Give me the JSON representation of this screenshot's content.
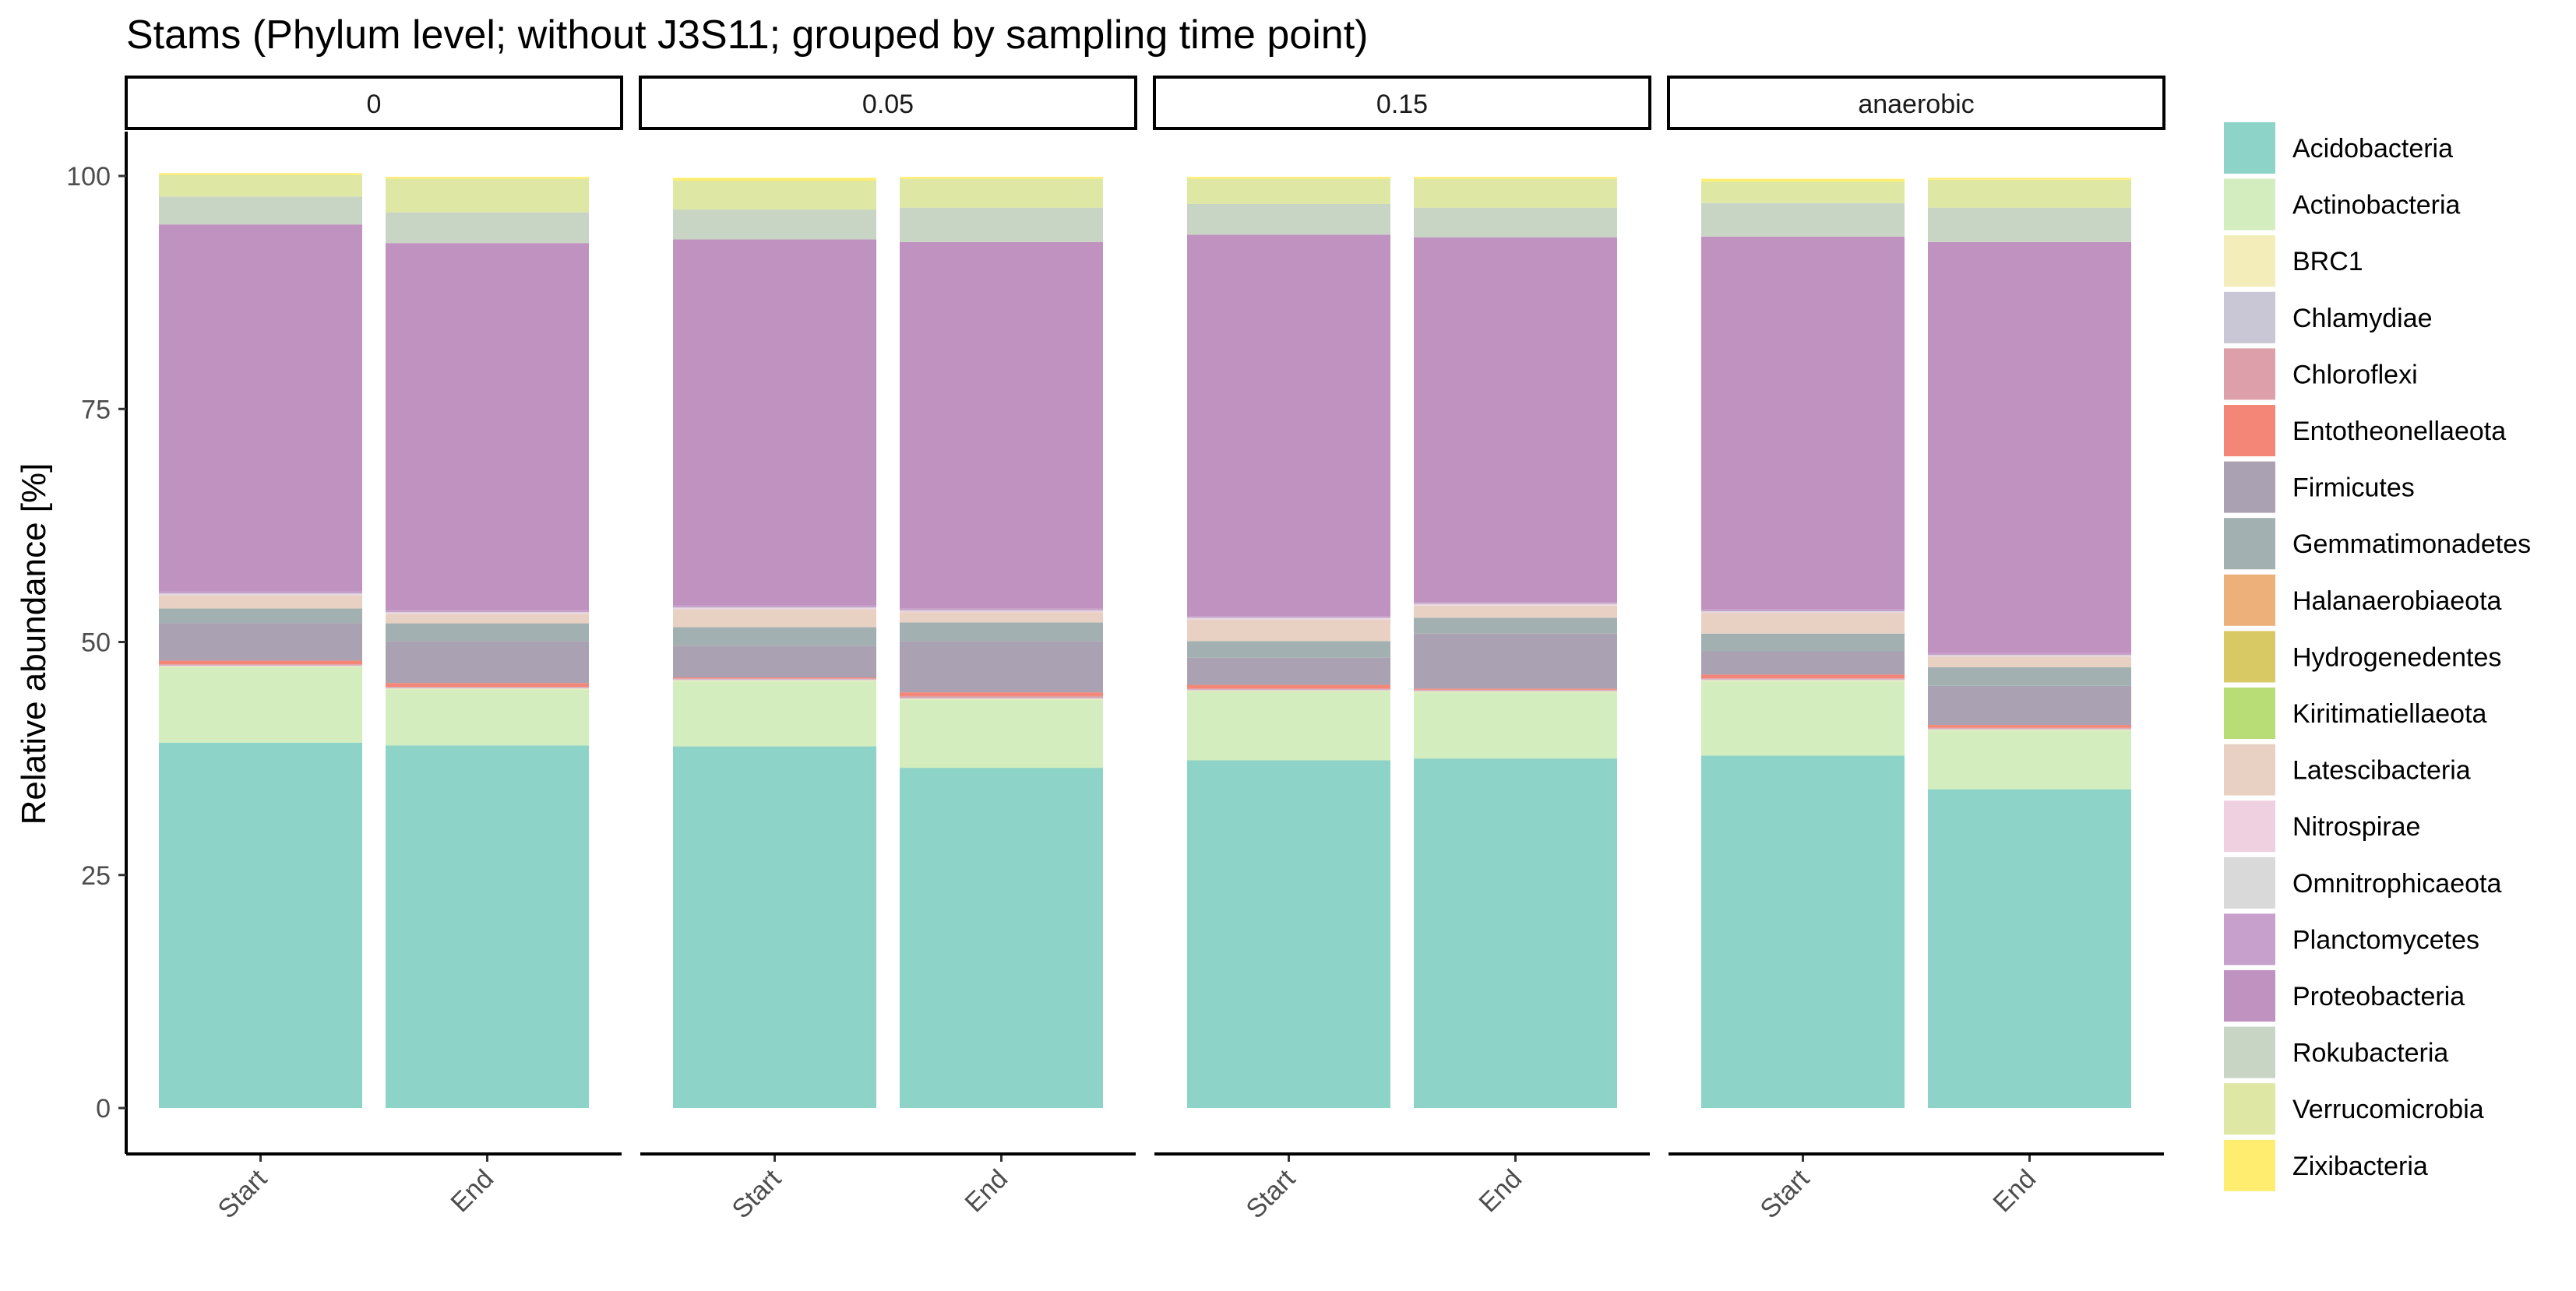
{
  "chart_data": {
    "type": "bar",
    "stacked": true,
    "title": "Stams (Phylum level; without J3S11; grouped by sampling time point)",
    "ylabel": "Relative abundance [%]",
    "xlabel": "",
    "ylim": [
      0,
      100
    ],
    "yticks": [
      0,
      25,
      50,
      75,
      100
    ],
    "grid": false,
    "legend_position": "right",
    "facets": [
      "0",
      "0.05",
      "0.15",
      "anaerobic"
    ],
    "categories": [
      "Start",
      "End"
    ],
    "series": [
      {
        "name": "Acidobacteria",
        "color": "#8DD3C7",
        "values": [
          [
            39.2,
            38.9
          ],
          [
            38.8,
            36.5
          ],
          [
            37.3,
            37.5
          ],
          [
            37.8,
            34.2
          ]
        ]
      },
      {
        "name": "Actinobacteria",
        "color": "#D3EDBF",
        "values": [
          [
            8.1,
            6.0
          ],
          [
            7.0,
            7.3
          ],
          [
            7.4,
            7.1
          ],
          [
            8.0,
            6.3
          ]
        ]
      },
      {
        "name": "BRC1",
        "color": "#F2EDB9",
        "values": [
          [
            0.1,
            0.1
          ],
          [
            0.1,
            0.1
          ],
          [
            0.1,
            0.1
          ],
          [
            0.1,
            0.1
          ]
        ]
      },
      {
        "name": "Chlamydiae",
        "color": "#C9C6D5",
        "values": [
          [
            0.1,
            0.1
          ],
          [
            0.1,
            0.1
          ],
          [
            0.1,
            0.1
          ],
          [
            0.1,
            0.1
          ]
        ]
      },
      {
        "name": "Chloroflexi",
        "color": "#DDA0AA",
        "values": [
          [
            0.1,
            0.1
          ],
          [
            0.1,
            0.2
          ],
          [
            0.1,
            0.1
          ],
          [
            0.1,
            0.1
          ]
        ]
      },
      {
        "name": "Entotheonellaeota",
        "color": "#F48677",
        "values": [
          [
            0.4,
            0.4
          ],
          [
            0.1,
            0.4
          ],
          [
            0.4,
            0.1
          ],
          [
            0.4,
            0.3
          ]
        ]
      },
      {
        "name": "Firmicutes",
        "color": "#AAA1B3",
        "values": [
          [
            4.0,
            4.5
          ],
          [
            3.4,
            5.5
          ],
          [
            2.9,
            5.9
          ],
          [
            2.5,
            4.2
          ]
        ]
      },
      {
        "name": "Gemmatimonadetes",
        "color": "#A2B0B1",
        "values": [
          [
            1.6,
            1.9
          ],
          [
            2.0,
            2.0
          ],
          [
            1.8,
            1.7
          ],
          [
            1.9,
            2.0
          ]
        ]
      },
      {
        "name": "Halanaerobiaeota",
        "color": "#EDB07A",
        "values": [
          [
            0.0,
            0.0
          ],
          [
            0.0,
            0.0
          ],
          [
            0.0,
            0.0
          ],
          [
            0.0,
            0.0
          ]
        ]
      },
      {
        "name": "Hydrogenedentes",
        "color": "#D8C965",
        "values": [
          [
            0.0,
            0.0
          ],
          [
            0.0,
            0.0
          ],
          [
            0.0,
            0.0
          ],
          [
            0.0,
            0.0
          ]
        ]
      },
      {
        "name": "Kiritimatiellaeota",
        "color": "#B9DD76",
        "values": [
          [
            0.0,
            0.0
          ],
          [
            0.0,
            0.0
          ],
          [
            0.0,
            0.0
          ],
          [
            0.0,
            0.0
          ]
        ]
      },
      {
        "name": "Latescibacteria",
        "color": "#E8D1C2",
        "values": [
          [
            1.4,
            1.0
          ],
          [
            1.9,
            1.1
          ],
          [
            2.3,
            1.3
          ],
          [
            2.2,
            1.1
          ]
        ]
      },
      {
        "name": "Nitrospirae",
        "color": "#EFD0E1",
        "values": [
          [
            0.1,
            0.1
          ],
          [
            0.1,
            0.1
          ],
          [
            0.1,
            0.1
          ],
          [
            0.1,
            0.1
          ]
        ]
      },
      {
        "name": "Omnitrophicaeota",
        "color": "#D9D9D9",
        "values": [
          [
            0.1,
            0.1
          ],
          [
            0.1,
            0.1
          ],
          [
            0.1,
            0.1
          ],
          [
            0.1,
            0.1
          ]
        ]
      },
      {
        "name": "Planctomycetes",
        "color": "#C7A0CB",
        "values": [
          [
            0.2,
            0.2
          ],
          [
            0.2,
            0.2
          ],
          [
            0.2,
            0.2
          ],
          [
            0.2,
            0.2
          ]
        ]
      },
      {
        "name": "Proteobacteria",
        "color": "#BF92C0",
        "values": [
          [
            39.4,
            39.4
          ],
          [
            39.3,
            39.3
          ],
          [
            40.9,
            39.1
          ],
          [
            40.0,
            44.1
          ]
        ]
      },
      {
        "name": "Rokubacteria",
        "color": "#C9D5C4",
        "values": [
          [
            3.0,
            3.3
          ],
          [
            3.2,
            3.7
          ],
          [
            3.3,
            3.2
          ],
          [
            3.6,
            3.7
          ]
        ]
      },
      {
        "name": "Verrucomicrobia",
        "color": "#DEE7A3",
        "values": [
          [
            2.3,
            3.6
          ],
          [
            3.1,
            3.1
          ],
          [
            2.7,
            3.1
          ],
          [
            2.3,
            3.0
          ]
        ]
      },
      {
        "name": "Zixibacteria",
        "color": "#FFED6F",
        "values": [
          [
            0.2,
            0.2
          ],
          [
            0.3,
            0.2
          ],
          [
            0.2,
            0.2
          ],
          [
            0.3,
            0.2
          ]
        ]
      }
    ]
  }
}
